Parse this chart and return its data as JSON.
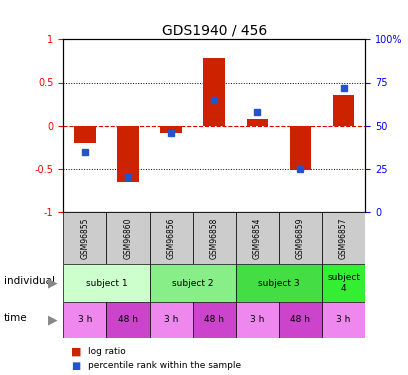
{
  "title": "GDS1940 / 456",
  "samples": [
    "GSM96855",
    "GSM96860",
    "GSM96856",
    "GSM96858",
    "GSM96854",
    "GSM96859",
    "GSM96857"
  ],
  "log_ratio": [
    -0.2,
    -0.65,
    -0.08,
    0.78,
    0.08,
    -0.52,
    0.35
  ],
  "percentile": [
    35,
    20,
    46,
    65,
    58,
    25,
    72
  ],
  "ylim": [
    -1,
    1
  ],
  "yticks_left": [
    -1,
    -0.5,
    0,
    0.5,
    1
  ],
  "ytick_labels_left": [
    "-1",
    "-0.5",
    "0",
    "0.5",
    "1"
  ],
  "yticks_right_pct": [
    0,
    25,
    50,
    75,
    100
  ],
  "ytick_labels_right": [
    "0",
    "25",
    "50",
    "75",
    "100%"
  ],
  "bar_color": "#cc2200",
  "dot_color": "#2255cc",
  "individuals": [
    {
      "label": "subject 1",
      "start": 0,
      "end": 2,
      "color": "#ccffcc"
    },
    {
      "label": "subject 2",
      "start": 2,
      "end": 4,
      "color": "#88ee88"
    },
    {
      "label": "subject 3",
      "start": 4,
      "end": 6,
      "color": "#44dd44"
    },
    {
      "label": "subject\n4",
      "start": 6,
      "end": 7,
      "color": "#33ee33"
    }
  ],
  "times": [
    {
      "label": "3 h",
      "color": "#ee88ee"
    },
    {
      "label": "48 h",
      "color": "#cc44cc"
    },
    {
      "label": "3 h",
      "color": "#ee88ee"
    },
    {
      "label": "48 h",
      "color": "#cc44cc"
    },
    {
      "label": "3 h",
      "color": "#ee88ee"
    },
    {
      "label": "48 h",
      "color": "#cc44cc"
    },
    {
      "label": "3 h",
      "color": "#ee88ee"
    }
  ],
  "legend_bar_label": "log ratio",
  "legend_dot_label": "percentile rank within the sample",
  "bg_color": "#ffffff",
  "sample_row_color": "#cccccc",
  "zero_line_color": "#dd0000",
  "grid_color": "#000000"
}
